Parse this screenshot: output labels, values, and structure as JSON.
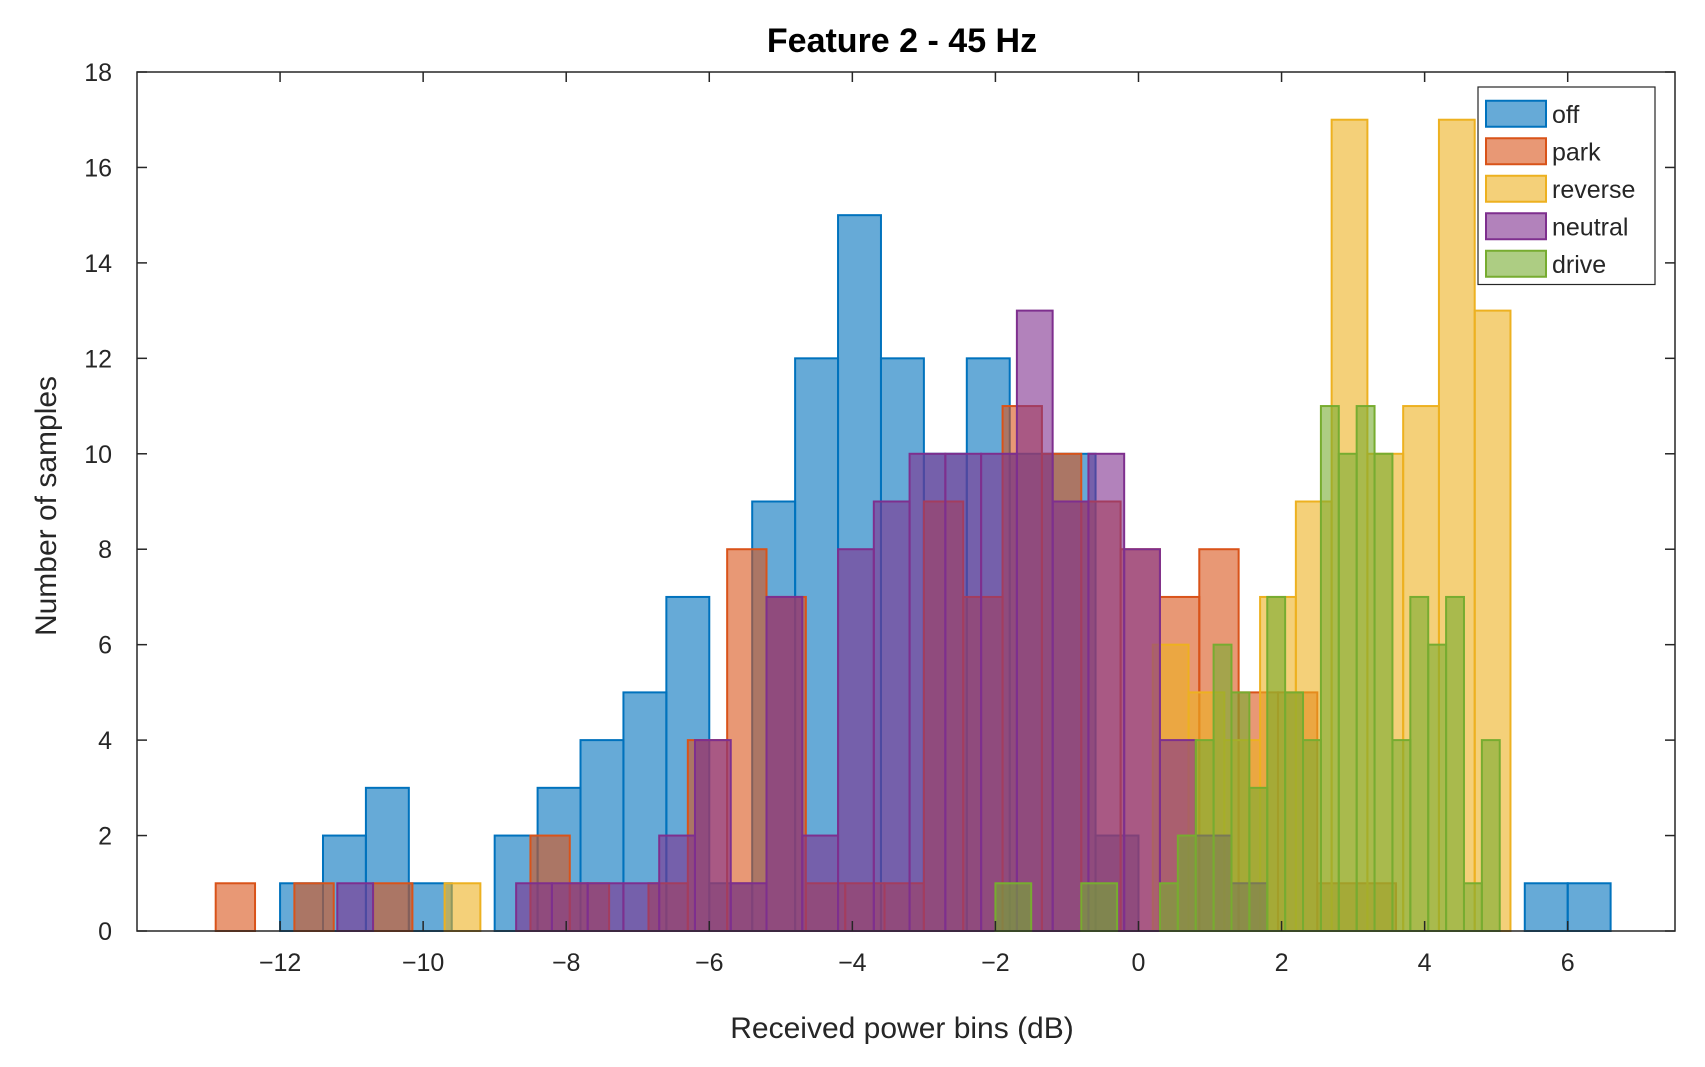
{
  "chart_data": {
    "type": "bar",
    "title": "Feature 2 - 45 Hz",
    "xlabel": "Received power bins (dB)",
    "ylabel": "Number of samples",
    "xlim": [
      -14.0,
      7.5
    ],
    "ylim": [
      0,
      18
    ],
    "xticks": [
      -12,
      -10,
      -8,
      -6,
      -4,
      -2,
      0,
      2,
      4,
      6
    ],
    "yticks": [
      0,
      2,
      4,
      6,
      8,
      10,
      12,
      14,
      16,
      18
    ],
    "legend_position": "top-right",
    "grid": false,
    "series": [
      {
        "name": "off",
        "color": "#0072BD",
        "bins": [
          [
            -12.0,
            -11.4,
            1
          ],
          [
            -11.4,
            -10.8,
            2
          ],
          [
            -10.8,
            -10.2,
            3
          ],
          [
            -10.2,
            -9.6,
            1
          ],
          [
            -9.6,
            -9.0,
            0
          ],
          [
            -9.0,
            -8.4,
            2
          ],
          [
            -8.4,
            -7.8,
            3
          ],
          [
            -7.8,
            -7.2,
            4
          ],
          [
            -7.2,
            -6.6,
            5
          ],
          [
            -6.6,
            -6.0,
            7
          ],
          [
            -6.0,
            -5.4,
            1
          ],
          [
            -5.4,
            -4.8,
            9
          ],
          [
            -4.8,
            -4.2,
            12
          ],
          [
            -4.2,
            -3.6,
            15
          ],
          [
            -3.6,
            -3.0,
            12
          ],
          [
            -3.0,
            -2.4,
            10
          ],
          [
            -2.4,
            -1.8,
            12
          ],
          [
            -1.8,
            -1.2,
            10
          ],
          [
            -1.2,
            -0.6,
            10
          ],
          [
            -0.6,
            0.0,
            2
          ],
          [
            5.4,
            6.0,
            1
          ],
          [
            6.0,
            6.6,
            1
          ]
        ]
      },
      {
        "name": "park",
        "color": "#D95319",
        "bins": [
          [
            -12.9,
            -12.35,
            1
          ],
          [
            -11.8,
            -11.25,
            1
          ],
          [
            -10.7,
            -10.15,
            1
          ],
          [
            -8.5,
            -7.95,
            2
          ],
          [
            -7.95,
            -7.4,
            1
          ],
          [
            -6.85,
            -6.3,
            1
          ],
          [
            -6.3,
            -5.75,
            4
          ],
          [
            -5.75,
            -5.2,
            8
          ],
          [
            -5.2,
            -4.65,
            7
          ],
          [
            -4.65,
            -4.1,
            1
          ],
          [
            -4.1,
            -3.55,
            1
          ],
          [
            -3.55,
            -3.0,
            1
          ],
          [
            -3.0,
            -2.45,
            9
          ],
          [
            -2.45,
            -1.9,
            7
          ],
          [
            -1.9,
            -1.35,
            11
          ],
          [
            -1.35,
            -0.8,
            10
          ],
          [
            -0.8,
            -0.25,
            9
          ],
          [
            -0.25,
            0.3,
            8
          ],
          [
            0.3,
            0.85,
            7
          ],
          [
            0.85,
            1.4,
            8
          ],
          [
            1.4,
            1.95,
            5
          ],
          [
            1.95,
            2.5,
            5
          ],
          [
            2.5,
            3.05,
            1
          ],
          [
            3.05,
            3.6,
            1
          ]
        ]
      },
      {
        "name": "reverse",
        "color": "#EDB120",
        "bins": [
          [
            -9.7,
            -9.2,
            1
          ],
          [
            0.2,
            0.7,
            6
          ],
          [
            0.7,
            1.2,
            5
          ],
          [
            1.2,
            1.7,
            4
          ],
          [
            1.7,
            2.2,
            7
          ],
          [
            2.2,
            2.7,
            9
          ],
          [
            2.7,
            3.2,
            17
          ],
          [
            3.2,
            3.7,
            10
          ],
          [
            3.7,
            4.2,
            11
          ],
          [
            4.2,
            4.7,
            17
          ],
          [
            4.7,
            5.2,
            13
          ]
        ]
      },
      {
        "name": "neutral",
        "color": "#7E2F8E",
        "bins": [
          [
            -11.2,
            -10.7,
            1
          ],
          [
            -8.7,
            -8.2,
            1
          ],
          [
            -8.2,
            -7.7,
            1
          ],
          [
            -7.7,
            -7.2,
            1
          ],
          [
            -7.2,
            -6.7,
            1
          ],
          [
            -6.7,
            -6.2,
            2
          ],
          [
            -6.2,
            -5.7,
            4
          ],
          [
            -5.7,
            -5.2,
            1
          ],
          [
            -5.2,
            -4.7,
            7
          ],
          [
            -4.7,
            -4.2,
            2
          ],
          [
            -4.2,
            -3.7,
            8
          ],
          [
            -3.7,
            -3.2,
            9
          ],
          [
            -3.2,
            -2.7,
            10
          ],
          [
            -2.7,
            -2.2,
            10
          ],
          [
            -2.2,
            -1.7,
            10
          ],
          [
            -1.7,
            -1.2,
            13
          ],
          [
            -1.2,
            -0.7,
            9
          ],
          [
            -0.7,
            -0.2,
            10
          ],
          [
            -0.2,
            0.3,
            8
          ],
          [
            0.3,
            0.8,
            4
          ],
          [
            0.8,
            1.3,
            2
          ],
          [
            1.3,
            1.8,
            1
          ]
        ]
      },
      {
        "name": "drive",
        "color": "#77AC30",
        "bins": [
          [
            -2.0,
            -1.5,
            1
          ],
          [
            -0.8,
            -0.3,
            1
          ],
          [
            0.3,
            0.55,
            1
          ],
          [
            0.55,
            0.8,
            2
          ],
          [
            0.8,
            1.05,
            4
          ],
          [
            1.05,
            1.3,
            6
          ],
          [
            1.3,
            1.55,
            5
          ],
          [
            1.55,
            1.8,
            3
          ],
          [
            1.8,
            2.05,
            7
          ],
          [
            2.05,
            2.3,
            5
          ],
          [
            2.3,
            2.55,
            4
          ],
          [
            2.55,
            2.8,
            11
          ],
          [
            2.8,
            3.05,
            10
          ],
          [
            3.05,
            3.3,
            11
          ],
          [
            3.3,
            3.55,
            10
          ],
          [
            3.55,
            3.8,
            4
          ],
          [
            3.8,
            4.05,
            7
          ],
          [
            4.05,
            4.3,
            6
          ],
          [
            4.3,
            4.55,
            7
          ],
          [
            4.55,
            4.8,
            1
          ],
          [
            4.8,
            5.05,
            4
          ]
        ]
      }
    ]
  }
}
